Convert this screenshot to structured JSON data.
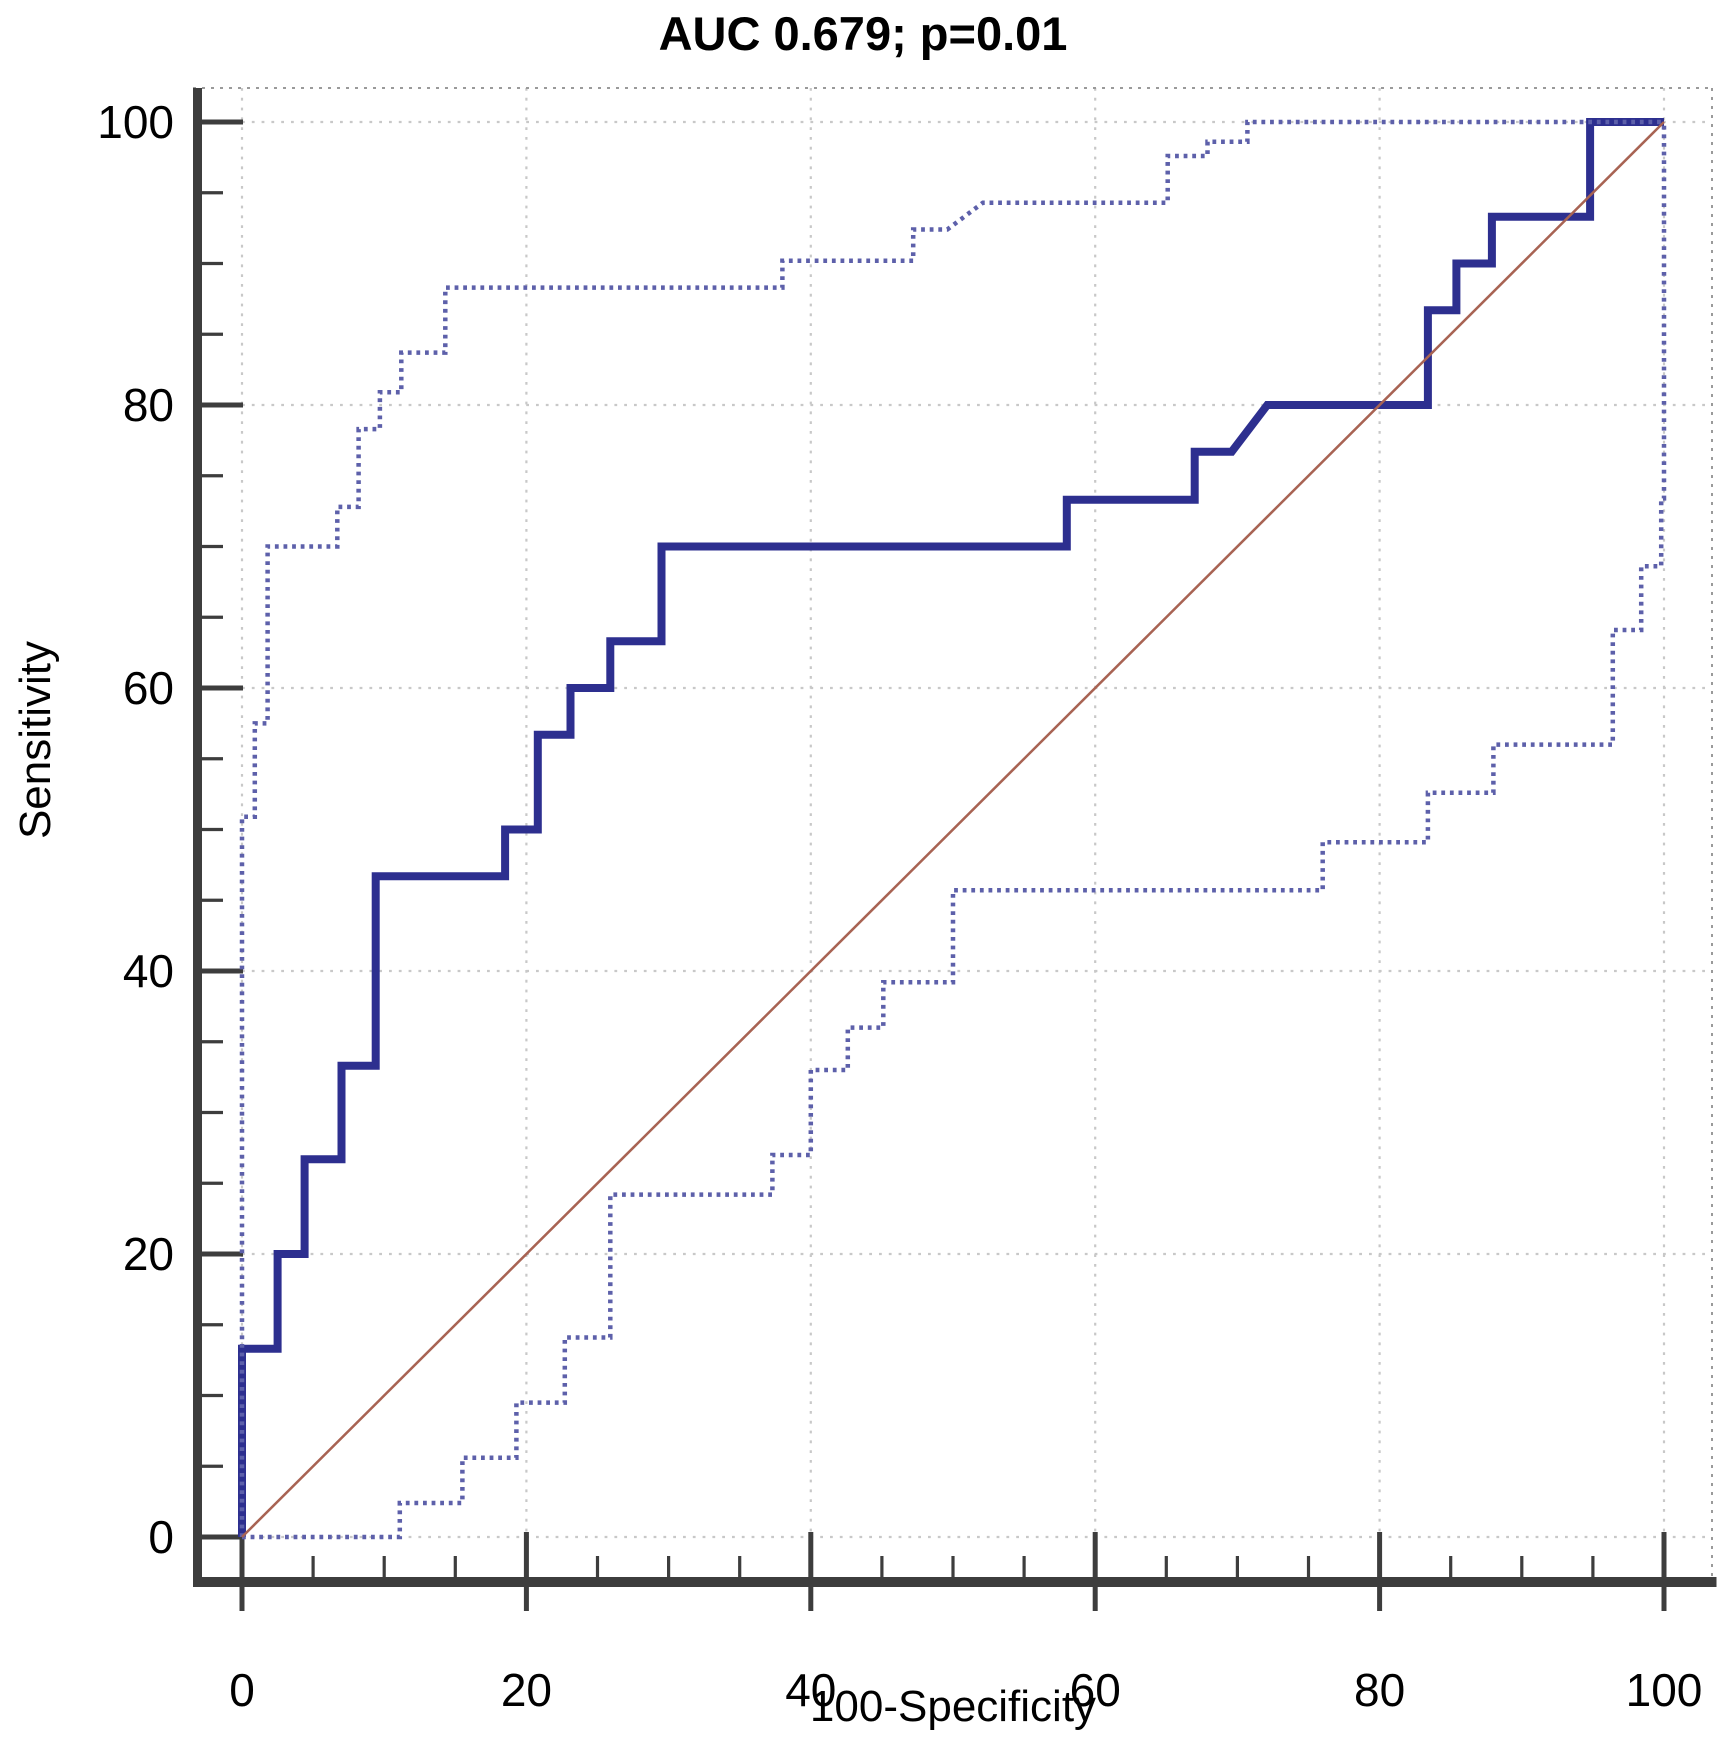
{
  "chart_data": {
    "type": "line",
    "subtype": "roc-curve-with-confidence-bands",
    "title": "AUC 0.679; p=0.01",
    "auc": 0.679,
    "p_value": "0.01",
    "xlabel": "100-Specificity",
    "ylabel": "Sensitivity",
    "xlim": [
      0,
      100
    ],
    "ylim": [
      0,
      100
    ],
    "x_ticks": [
      0,
      20,
      40,
      60,
      80,
      100
    ],
    "y_ticks": [
      0,
      20,
      40,
      60,
      80,
      100
    ],
    "minor_tick_step": 5,
    "grid": true,
    "legend_position": "none",
    "colors": {
      "roc": "#2d2f8f",
      "confidence_band": "#5d60aa",
      "reference": "#a86353",
      "gridline": "#c8c8c8",
      "axis": "#3d3d3d",
      "frame": "#9a9a9a",
      "text": "#000000"
    },
    "series": [
      {
        "name": "roc-curve",
        "style": "solid",
        "width": 8,
        "colorKey": "roc",
        "points": [
          [
            0,
            0
          ],
          [
            0,
            13.3
          ],
          [
            2.5,
            13.3
          ],
          [
            2.5,
            20
          ],
          [
            4.4,
            20
          ],
          [
            4.4,
            26.7
          ],
          [
            7,
            26.7
          ],
          [
            7,
            33.3
          ],
          [
            9.4,
            33.3
          ],
          [
            9.4,
            46.7
          ],
          [
            18.5,
            46.7
          ],
          [
            18.5,
            50
          ],
          [
            20.8,
            50
          ],
          [
            20.8,
            56.7
          ],
          [
            23.1,
            56.7
          ],
          [
            23.1,
            60
          ],
          [
            25.9,
            60
          ],
          [
            25.9,
            63.3
          ],
          [
            29.5,
            63.3
          ],
          [
            29.5,
            70
          ],
          [
            58,
            70
          ],
          [
            58,
            73.3
          ],
          [
            67,
            73.3
          ],
          [
            67,
            76.7
          ],
          [
            69.6,
            76.7
          ],
          [
            72.1,
            80
          ],
          [
            83.4,
            80
          ],
          [
            83.4,
            86.7
          ],
          [
            85.4,
            86.7
          ],
          [
            85.4,
            90
          ],
          [
            87.9,
            90
          ],
          [
            87.9,
            93.3
          ],
          [
            94.8,
            93.3
          ],
          [
            94.8,
            100
          ],
          [
            100,
            100
          ]
        ]
      },
      {
        "name": "upper-95ci-band",
        "style": "dotted",
        "width": 4.5,
        "colorKey": "confidence_band",
        "points": [
          [
            0,
            0
          ],
          [
            0,
            50.9
          ],
          [
            0.9,
            50.9
          ],
          [
            0.9,
            57.5
          ],
          [
            1.8,
            57.5
          ],
          [
            1.8,
            70
          ],
          [
            6.7,
            70
          ],
          [
            6.7,
            72.8
          ],
          [
            8.2,
            72.8
          ],
          [
            8.2,
            78.3
          ],
          [
            9.7,
            78.3
          ],
          [
            9.7,
            80.9
          ],
          [
            11.2,
            80.9
          ],
          [
            11.2,
            83.7
          ],
          [
            14.3,
            83.7
          ],
          [
            14.3,
            88.3
          ],
          [
            38,
            88.3
          ],
          [
            38,
            90.2
          ],
          [
            47.2,
            90.2
          ],
          [
            47.2,
            92.4
          ],
          [
            49.6,
            92.4
          ],
          [
            52.1,
            94.3
          ],
          [
            65.1,
            94.3
          ],
          [
            65.1,
            97.6
          ],
          [
            67.9,
            97.6
          ],
          [
            67.9,
            98.6
          ],
          [
            70.7,
            98.6
          ],
          [
            70.7,
            100
          ],
          [
            100,
            100
          ]
        ]
      },
      {
        "name": "lower-95ci-band",
        "style": "dotted",
        "width": 4.5,
        "colorKey": "confidence_band",
        "points": [
          [
            0,
            0
          ],
          [
            11.1,
            0
          ],
          [
            11.1,
            2.4
          ],
          [
            15.5,
            2.4
          ],
          [
            15.5,
            5.6
          ],
          [
            19.3,
            5.6
          ],
          [
            19.3,
            9.5
          ],
          [
            22.7,
            9.5
          ],
          [
            22.7,
            14.1
          ],
          [
            25.9,
            14.1
          ],
          [
            25.9,
            24.2
          ],
          [
            37.3,
            24.2
          ],
          [
            37.3,
            27
          ],
          [
            40,
            27
          ],
          [
            40,
            33
          ],
          [
            42.6,
            33
          ],
          [
            42.6,
            36
          ],
          [
            45.1,
            36
          ],
          [
            45.1,
            39.2
          ],
          [
            50,
            39.2
          ],
          [
            50,
            45.7
          ],
          [
            76,
            45.7
          ],
          [
            76,
            49.1
          ],
          [
            83.4,
            49.1
          ],
          [
            83.4,
            52.6
          ],
          [
            88,
            52.6
          ],
          [
            88,
            56
          ],
          [
            96.4,
            56
          ],
          [
            96.4,
            64.1
          ],
          [
            98.4,
            64.1
          ],
          [
            98.4,
            68.6
          ],
          [
            99.8,
            68.6
          ],
          [
            99.8,
            73.4
          ],
          [
            100,
            73.4
          ],
          [
            100,
            100
          ]
        ]
      },
      {
        "name": "reference-diagonal",
        "style": "solid",
        "width": 2.5,
        "colorKey": "reference",
        "points": [
          [
            0,
            0
          ],
          [
            100,
            100
          ]
        ]
      }
    ]
  }
}
